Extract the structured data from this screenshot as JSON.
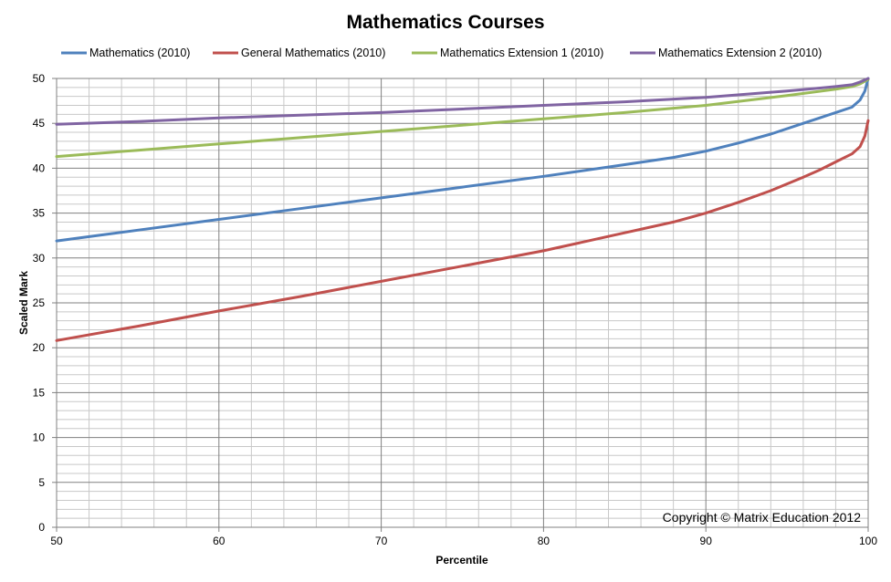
{
  "chart_data": {
    "type": "line",
    "title": "Mathematics Courses",
    "xlabel": "Percentile",
    "ylabel": "Scaled Mark",
    "xlim": [
      50,
      100
    ],
    "ylim": [
      0,
      50
    ],
    "x_ticks": [
      50,
      60,
      70,
      80,
      90,
      100
    ],
    "y_ticks": [
      0,
      5,
      10,
      15,
      20,
      25,
      30,
      35,
      40,
      45,
      50
    ],
    "grid": true,
    "legend_position": "top",
    "annotation": "Copyright © Matrix Education 2012",
    "series": [
      {
        "name": "Mathematics (2010)",
        "color": "#4f81bd",
        "points": [
          [
            50,
            31.9
          ],
          [
            55,
            33.1
          ],
          [
            60,
            34.3
          ],
          [
            65,
            35.5
          ],
          [
            70,
            36.7
          ],
          [
            75,
            37.9
          ],
          [
            80,
            39.1
          ],
          [
            85,
            40.4
          ],
          [
            88,
            41.2
          ],
          [
            90,
            41.9
          ],
          [
            92,
            42.8
          ],
          [
            94,
            43.8
          ],
          [
            96,
            45.0
          ],
          [
            97,
            45.6
          ],
          [
            98,
            46.2
          ],
          [
            99,
            46.8
          ],
          [
            99.5,
            47.6
          ],
          [
            99.8,
            48.6
          ],
          [
            100,
            50.0
          ]
        ]
      },
      {
        "name": "General Mathematics (2010)",
        "color": "#c0504d",
        "points": [
          [
            50,
            20.8
          ],
          [
            55,
            22.4
          ],
          [
            60,
            24.1
          ],
          [
            65,
            25.7
          ],
          [
            70,
            27.4
          ],
          [
            75,
            29.1
          ],
          [
            80,
            30.8
          ],
          [
            85,
            32.8
          ],
          [
            88,
            34.0
          ],
          [
            90,
            35.0
          ],
          [
            92,
            36.2
          ],
          [
            94,
            37.5
          ],
          [
            96,
            39.0
          ],
          [
            97,
            39.8
          ],
          [
            98,
            40.7
          ],
          [
            99,
            41.6
          ],
          [
            99.5,
            42.4
          ],
          [
            99.8,
            43.6
          ],
          [
            100,
            45.3
          ]
        ]
      },
      {
        "name": "Mathematics Extension 1 (2010)",
        "color": "#9bbb59",
        "points": [
          [
            50,
            41.3
          ],
          [
            55,
            42.0
          ],
          [
            60,
            42.7
          ],
          [
            65,
            43.4
          ],
          [
            70,
            44.1
          ],
          [
            75,
            44.8
          ],
          [
            80,
            45.5
          ],
          [
            85,
            46.2
          ],
          [
            90,
            47.0
          ],
          [
            95,
            48.1
          ],
          [
            98,
            48.8
          ],
          [
            99,
            49.1
          ],
          [
            99.5,
            49.4
          ],
          [
            100,
            49.9
          ]
        ]
      },
      {
        "name": "Mathematics Extension 2 (2010)",
        "color": "#8064a2",
        "points": [
          [
            50,
            44.9
          ],
          [
            55,
            45.2
          ],
          [
            60,
            45.6
          ],
          [
            65,
            45.9
          ],
          [
            70,
            46.2
          ],
          [
            75,
            46.6
          ],
          [
            80,
            47.0
          ],
          [
            85,
            47.4
          ],
          [
            90,
            47.9
          ],
          [
            95,
            48.6
          ],
          [
            98,
            49.1
          ],
          [
            99,
            49.3
          ],
          [
            99.5,
            49.6
          ],
          [
            100,
            50.0
          ]
        ]
      }
    ]
  }
}
